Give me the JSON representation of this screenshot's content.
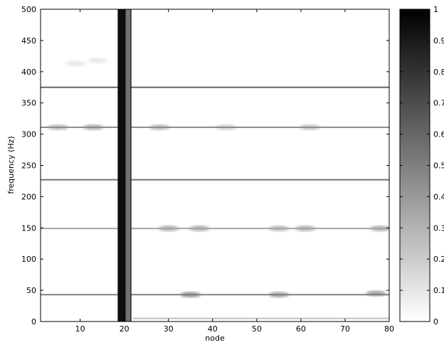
{
  "chart_data": {
    "type": "heatmap",
    "title": "",
    "xlabel": "node",
    "ylabel": "frequency (Hz)",
    "xlim": [
      1,
      80
    ],
    "ylim": [
      0,
      500
    ],
    "xticks": [
      10,
      20,
      30,
      40,
      50,
      60,
      70,
      80
    ],
    "yticks": [
      0,
      50,
      100,
      150,
      200,
      250,
      300,
      350,
      400,
      450,
      500
    ],
    "colorbar": {
      "min": 0,
      "max": 1,
      "ticks": [
        "0",
        "0.1",
        "0.2",
        "0.3",
        "0.4",
        "0.5",
        "0.6",
        "0.7",
        "0.8",
        "0.9",
        "1"
      ],
      "colormap": "white-to-black"
    },
    "dark_columns": [
      {
        "x_from": 18.5,
        "x_to": 21.6,
        "intensity": 0.95
      },
      {
        "x_from": 20.3,
        "x_to": 21.4,
        "intensity": 0.55
      }
    ],
    "horizontal_bands": [
      {
        "frequency": 375,
        "x_from": 1,
        "x_to": 80,
        "intensity": 0.6
      },
      {
        "frequency": 311,
        "x_from": 1,
        "x_to": 80,
        "intensity": 0.45
      },
      {
        "frequency": 227,
        "x_from": 1,
        "x_to": 80,
        "intensity": 0.55
      },
      {
        "frequency": 149,
        "x_from": 1,
        "x_to": 80,
        "intensity": 0.35
      },
      {
        "frequency": 43,
        "x_from": 1,
        "x_to": 80,
        "intensity": 0.5
      },
      {
        "frequency": 5,
        "x_from": 22,
        "x_to": 80,
        "intensity": 0.25
      }
    ],
    "blobs": [
      {
        "x": 5,
        "frequency": 311,
        "intensity": 0.3
      },
      {
        "x": 13,
        "frequency": 311,
        "intensity": 0.35
      },
      {
        "x": 28,
        "frequency": 311,
        "intensity": 0.3
      },
      {
        "x": 43,
        "frequency": 311,
        "intensity": 0.2
      },
      {
        "x": 62,
        "frequency": 311,
        "intensity": 0.25
      },
      {
        "x": 30,
        "frequency": 149,
        "intensity": 0.35
      },
      {
        "x": 37,
        "frequency": 149,
        "intensity": 0.35
      },
      {
        "x": 55,
        "frequency": 149,
        "intensity": 0.3
      },
      {
        "x": 61,
        "frequency": 149,
        "intensity": 0.35
      },
      {
        "x": 78,
        "frequency": 149,
        "intensity": 0.35
      },
      {
        "x": 35,
        "frequency": 43,
        "intensity": 0.45
      },
      {
        "x": 55,
        "frequency": 43,
        "intensity": 0.4
      },
      {
        "x": 77,
        "frequency": 45,
        "intensity": 0.4
      },
      {
        "x": 9,
        "frequency": 413,
        "intensity": 0.1
      },
      {
        "x": 14,
        "frequency": 418,
        "intensity": 0.1
      }
    ]
  }
}
